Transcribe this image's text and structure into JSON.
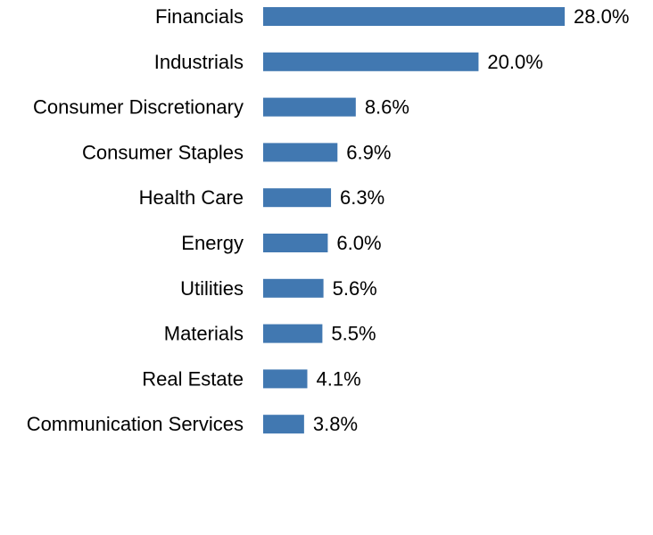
{
  "chart_data": {
    "type": "bar",
    "orientation": "horizontal",
    "categories": [
      "Financials",
      "Industrials",
      "Consumer Discretionary",
      "Consumer Staples",
      "Health Care",
      "Energy",
      "Utilities",
      "Materials",
      "Real Estate",
      "Communication Services"
    ],
    "values": [
      28.0,
      20.0,
      8.6,
      6.9,
      6.3,
      6.0,
      5.6,
      5.5,
      4.1,
      3.8
    ],
    "value_labels": [
      "28.0%",
      "20.0%",
      "8.6%",
      "6.9%",
      "6.3%",
      "6.0%",
      "5.6%",
      "5.5%",
      "4.1%",
      "3.8%"
    ],
    "title": "",
    "xlabel": "",
    "ylabel": "",
    "xlim": [
      0,
      28.0
    ],
    "grid": false,
    "legend": "none",
    "bar_color": "#4178B1"
  }
}
